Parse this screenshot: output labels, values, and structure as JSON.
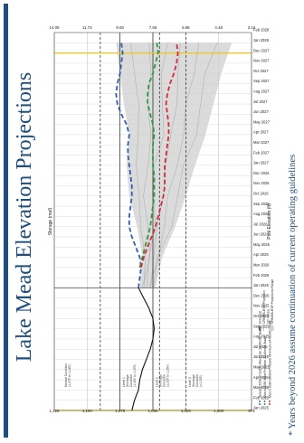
{
  "slide": {
    "title": "Lake Mead Elevation Projections",
    "footnote": "* Years beyond 2026 assume continuation of current operating guidelines"
  },
  "colors": {
    "accent": "#1f4e7a",
    "max_study": "#2f5fb3",
    "most_probable": "#2e9a3e",
    "min_study": "#d7263d",
    "historical": "#111111",
    "esp_band": "#cfcfcf",
    "year_marker": "#f0c419"
  },
  "chart_data": {
    "type": "line",
    "x_ticks": [
      "Jan 2025",
      "Feb 2025",
      "Mar 2025",
      "Apr 2025",
      "May 2025",
      "Jun 2025",
      "Jul 2025",
      "Aug 2025",
      "Sep 2025",
      "Oct 2025",
      "Nov 2025",
      "Dec 2025",
      "Jan 2026",
      "Feb 2026",
      "Mar 2026",
      "Apr 2026",
      "May 2026",
      "Jun 2026",
      "Jul 2026",
      "Aug 2026",
      "Sep 2026",
      "Oct 2026",
      "Nov 2026",
      "Dec 2026",
      "Jan 2027",
      "Feb 2027",
      "Mar 2027",
      "Apr 2027",
      "May 2027",
      "Jun 2027",
      "Jul 2027",
      "Aug 2027",
      "Sep 2027",
      "Oct 2027",
      "Nov 2027",
      "Dec 2027",
      "Jan 2028",
      "Feb 2028"
    ],
    "ylabel": "Pool Elevation (ft)",
    "ylabel_right": "Storage (maf)",
    "y_ticks": [
      975,
      1000,
      1025,
      1050,
      1075,
      1100,
      1125
    ],
    "y_tick_labels": [
      "975",
      "1,000",
      "1,025",
      "1,050",
      "1,075",
      "1,100",
      "1,125"
    ],
    "ylim": [
      975,
      1125
    ],
    "storage_ticks": [
      {
        "elev": 975,
        "label": "3.16"
      },
      {
        "elev": 1000,
        "label": "4.48"
      },
      {
        "elev": 1025,
        "label": "5.98"
      },
      {
        "elev": 1050,
        "label": "7.68"
      },
      {
        "elev": 1075,
        "label": "9.60"
      },
      {
        "elev": 1100,
        "label": "11.74"
      },
      {
        "elev": 1125,
        "label": "14.09"
      }
    ],
    "vertical_markers": [
      {
        "x": 0,
        "color": "yellow"
      },
      {
        "x": 12,
        "color": "gray"
      },
      {
        "x": 35,
        "color": "yellow"
      }
    ],
    "thresholds": [
      {
        "elev": 1090,
        "style": "dash"
      },
      {
        "elev": 1075,
        "style": "solid"
      },
      {
        "elev": 1050,
        "style": "solid"
      },
      {
        "elev": 1045,
        "style": "dash"
      },
      {
        "elev": 1025,
        "style": "dash"
      }
    ],
    "condition_labels": [
      {
        "x": 2.3,
        "top": 1118,
        "lines": [
          "Normal Condition",
          "(1,075' to 1,145')"
        ]
      },
      {
        "x": 2.3,
        "top": 1074,
        "lines": [
          "Level 1",
          "Shortage",
          "Condition",
          "(1,050' to 1,075')"
        ]
      },
      {
        "x": 2.3,
        "top": 1049,
        "lines": [
          "Level 2",
          "Shortage",
          "Condition",
          "(1,025' to 1,050')"
        ]
      },
      {
        "x": 2.3,
        "top": 1024,
        "lines": [
          "Level 3",
          "Shortage",
          "Condition",
          "(<1,025')"
        ]
      }
    ],
    "esp_band": {
      "x": [
        12,
        15,
        18,
        21,
        24,
        27,
        30,
        33,
        36
      ],
      "upper": [
        1060,
        1058,
        1062,
        1068,
        1070,
        1068,
        1072,
        1075,
        1078
      ],
      "lower": [
        1048,
        1043,
        1033,
        1025,
        1018,
        1010,
        1004,
        998,
        990
      ]
    },
    "series": [
      {
        "name": "Historical",
        "style": "solid",
        "x": [
          0,
          1,
          2,
          3,
          4,
          5,
          6,
          7,
          8,
          9,
          10,
          11,
          12
        ],
        "y": [
          1066,
          1064,
          1061,
          1060,
          1058,
          1055,
          1052,
          1050,
          1049,
          1050,
          1053,
          1057,
          1061
        ]
      },
      {
        "name": "January 2026 Probable Maximum 24-Month Study",
        "style": "dash",
        "x": [
          12,
          13,
          14,
          15,
          16,
          17,
          18,
          19,
          20,
          21,
          22,
          23,
          24,
          25,
          26,
          27,
          28,
          29,
          30,
          31,
          32,
          33,
          34,
          35,
          36
        ],
        "y": [
          1061,
          1060,
          1059,
          1060,
          1063,
          1066,
          1068,
          1068,
          1067,
          1066,
          1066,
          1067,
          1068,
          1069,
          1069,
          1068,
          1070,
          1074,
          1077,
          1078,
          1077,
          1075,
          1074,
          1073,
          1074
        ]
      },
      {
        "name": "March 2026 Most Probable 24-Month Study",
        "style": "dash",
        "x": [
          14,
          15,
          16,
          17,
          18,
          19,
          20,
          21,
          22,
          23,
          24,
          25,
          26,
          27,
          28,
          29,
          30,
          31,
          32,
          33,
          34,
          35,
          36
        ],
        "y": [
          1060,
          1058,
          1056,
          1054,
          1052,
          1051,
          1050,
          1049,
          1049,
          1049,
          1050,
          1050,
          1050,
          1049,
          1050,
          1052,
          1054,
          1054,
          1053,
          1050,
          1048,
          1046,
          1047
        ]
      },
      {
        "name": "March 2026 DROA Probable Minimum 24-Month Study",
        "style": "dash",
        "x": [
          14,
          15,
          16,
          17,
          18,
          19,
          20,
          21,
          22,
          23,
          24,
          25,
          26,
          27,
          28,
          29,
          30,
          31,
          32,
          33,
          34,
          35,
          36
        ],
        "y": [
          1059,
          1057,
          1054,
          1051,
          1048,
          1046,
          1044,
          1042,
          1041,
          1041,
          1041,
          1040,
          1039,
          1038,
          1038,
          1039,
          1040,
          1039,
          1037,
          1034,
          1032,
          1031,
          1032
        ]
      }
    ],
    "legend_left": [
      {
        "label": "January 2026 Probable Maximum 24-Month Study",
        "color": "#2f5fb3",
        "style": "dash"
      },
      {
        "label": "March 2026 Most Probable 24-Month Study",
        "color": "#2e9a3e",
        "style": "dash"
      },
      {
        "label": "March 2026 DROA Probable Minimum 24-Month Study",
        "color": "#d7263d",
        "style": "dash"
      }
    ],
    "legend_right": [
      {
        "label": "Historical",
        "kind": "solid"
      },
      {
        "label": "CRMMS-ESP Projection",
        "kind": "thin"
      },
      {
        "label": "(30 traces)",
        "kind": "none"
      },
      {
        "label": "CRMMS-ESP Projections Range",
        "kind": "box"
      }
    ]
  }
}
